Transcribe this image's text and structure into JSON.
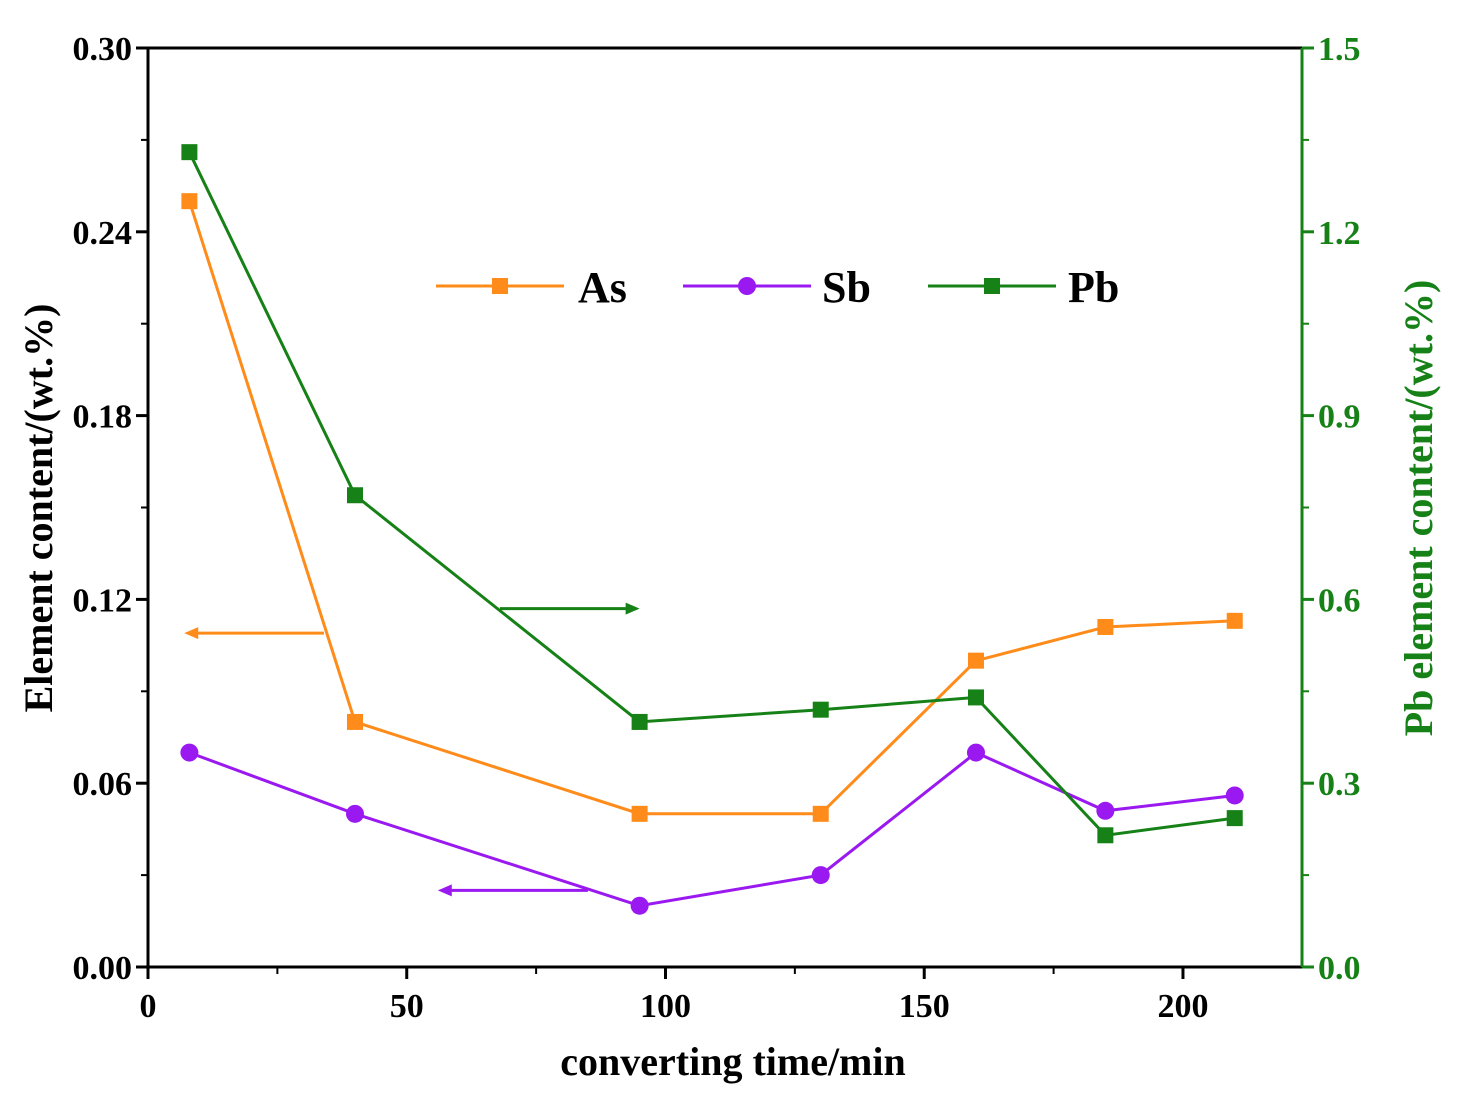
{
  "chart_data": {
    "type": "line",
    "title": "",
    "xlabel": "converting time/min",
    "ylabel_left": "Element content/(wt.%)",
    "ylabel_right": "Pb element content/(wt.%)",
    "xlim": [
      0,
      223
    ],
    "ylim_left": [
      0,
      0.3
    ],
    "ylim_right": [
      0,
      1.5
    ],
    "x_ticks": [
      "0",
      "50",
      "100",
      "150",
      "200"
    ],
    "x_tick_values": [
      0,
      50,
      100,
      150,
      200
    ],
    "y_left_ticks": [
      "0.00",
      "0.06",
      "0.12",
      "0.18",
      "0.24",
      "0.30"
    ],
    "y_left_tick_values": [
      0,
      0.06,
      0.12,
      0.18,
      0.24,
      0.3
    ],
    "y_right_ticks": [
      "0.0",
      "0.3",
      "0.6",
      "0.9",
      "1.2",
      "1.5"
    ],
    "y_right_tick_values": [
      0,
      0.3,
      0.6,
      0.9,
      1.2,
      1.5
    ],
    "right_axis_color": "#168116",
    "legend_position": "top-center",
    "series": [
      {
        "name": "As",
        "axis": "left",
        "marker": "square",
        "color": "#ff8c1a",
        "x": [
          8,
          40,
          95,
          130,
          160,
          185,
          210
        ],
        "values": [
          0.25,
          0.08,
          0.05,
          0.05,
          0.1,
          0.111,
          0.113
        ]
      },
      {
        "name": "Sb",
        "axis": "left",
        "marker": "circle",
        "color": "#9a19f0",
        "x": [
          8,
          40,
          95,
          130,
          160,
          185,
          210
        ],
        "values": [
          0.07,
          0.05,
          0.02,
          0.03,
          0.07,
          0.051,
          0.056
        ]
      },
      {
        "name": "Pb",
        "axis": "right",
        "marker": "square",
        "color": "#168116",
        "x": [
          8,
          40,
          95,
          130,
          160,
          185,
          210
        ],
        "values": [
          1.33,
          0.77,
          0.4,
          0.42,
          0.44,
          0.215,
          0.243
        ]
      }
    ],
    "annotations": [
      {
        "kind": "arrow",
        "series": "As",
        "direction": "left",
        "axis": "left",
        "y": 0.109,
        "x_from": 34,
        "x_to": 7
      },
      {
        "kind": "arrow",
        "series": "Pb",
        "direction": "right",
        "axis": "right",
        "y": 0.585,
        "x_from": 68,
        "x_to": 95
      },
      {
        "kind": "arrow",
        "series": "Sb",
        "direction": "left",
        "axis": "left",
        "y": 0.025,
        "x_from": 85,
        "x_to": 56
      }
    ]
  }
}
